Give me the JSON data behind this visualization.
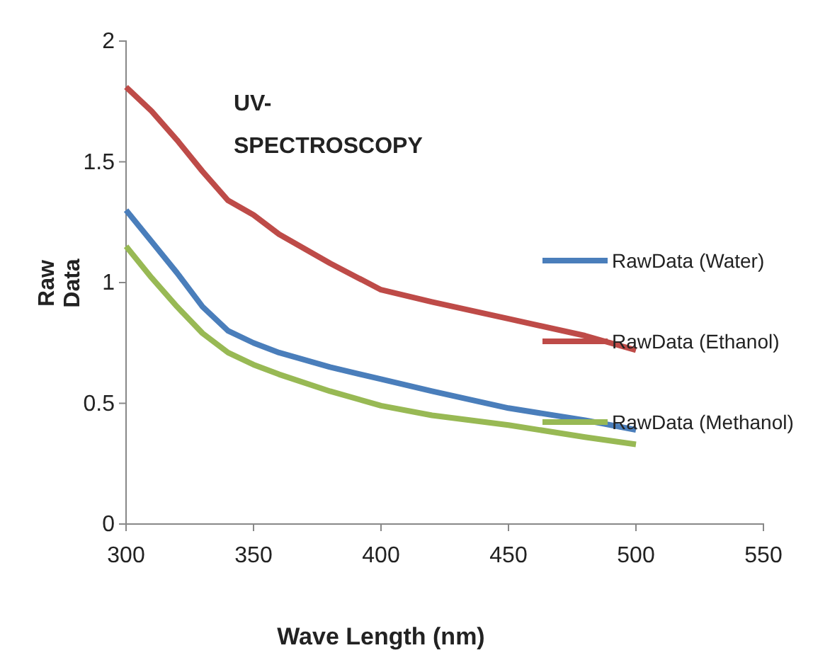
{
  "chart_data": {
    "type": "line",
    "title": "UV- SPECTROSCOPY",
    "xlabel": "Wave Length (nm)",
    "ylabel": "Raw Data",
    "x": [
      300,
      310,
      320,
      330,
      340,
      350,
      360,
      380,
      400,
      420,
      450,
      480,
      500
    ],
    "xlim": [
      300,
      550
    ],
    "xticks": [
      300,
      350,
      400,
      450,
      500,
      550
    ],
    "ylim": [
      0,
      2
    ],
    "yticks": [
      0,
      0.5,
      1,
      1.5,
      2
    ],
    "grid": false,
    "legend": "right",
    "marker": "none",
    "line_style": "solid",
    "series": [
      {
        "name": "RawData (Water)",
        "color": "#4a7ebb",
        "values": [
          1.3,
          1.17,
          1.04,
          0.9,
          0.8,
          0.75,
          0.71,
          0.65,
          0.6,
          0.55,
          0.48,
          0.43,
          0.39
        ]
      },
      {
        "name": "RawData (Ethanol)",
        "color": "#be4b48",
        "values": [
          1.81,
          1.71,
          1.59,
          1.46,
          1.34,
          1.28,
          1.2,
          1.08,
          0.97,
          0.92,
          0.85,
          0.78,
          0.72
        ]
      },
      {
        "name": "RawData (Methanol)",
        "color": "#98b954",
        "values": [
          1.15,
          1.02,
          0.9,
          0.79,
          0.71,
          0.66,
          0.62,
          0.55,
          0.49,
          0.45,
          0.41,
          0.36,
          0.33
        ]
      }
    ]
  }
}
